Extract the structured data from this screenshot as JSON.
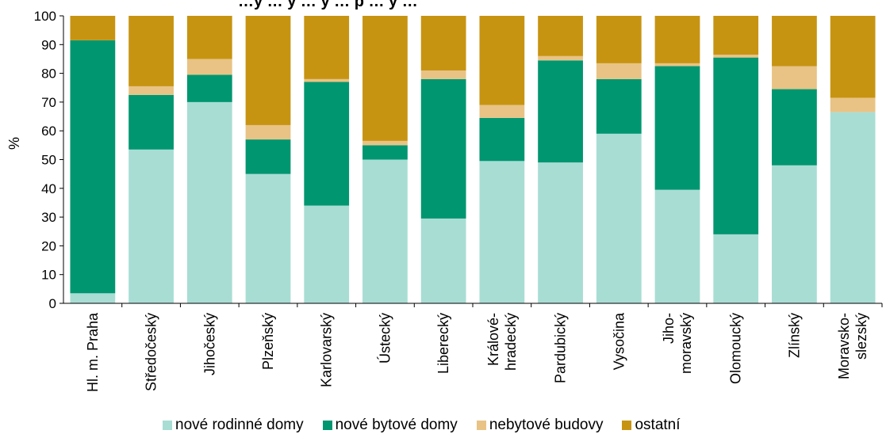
{
  "chart_data": {
    "type": "bar",
    "stacked": true,
    "title": "…y … y … y … p … y …",
    "ylabel": "%",
    "ylim": [
      0,
      100
    ],
    "yticks": [
      0,
      10,
      20,
      30,
      40,
      50,
      60,
      70,
      80,
      90,
      100
    ],
    "grid": false,
    "legend_position": "bottom",
    "categories": [
      [
        "Hl. m. Praha"
      ],
      [
        "Středočeský"
      ],
      [
        "Jihočeský"
      ],
      [
        "Plzeňský"
      ],
      [
        "Karlovarský"
      ],
      [
        "Ústecký"
      ],
      [
        "Liberecký"
      ],
      [
        "Králové-",
        "hradecký"
      ],
      [
        "Pardubický"
      ],
      [
        "Vysočina"
      ],
      [
        "Jiho-",
        "moravský"
      ],
      [
        "Olomoucký"
      ],
      [
        "Zlínský"
      ],
      [
        "Moravsko-",
        "slezský"
      ]
    ],
    "series": [
      {
        "name": "nové rodinné domy",
        "color": "#a8ddd4",
        "values": [
          3.5,
          53.5,
          70,
          45,
          34,
          50,
          29.5,
          49.5,
          49,
          59,
          39.5,
          24,
          48,
          66.5
        ]
      },
      {
        "name": "nové bytové domy",
        "color": "#009670",
        "values": [
          88,
          19,
          9.5,
          12,
          43,
          5,
          48.5,
          15,
          35.5,
          19,
          43,
          61.5,
          26.5,
          0
        ]
      },
      {
        "name": "nebytové budovy",
        "color": "#e8c385",
        "values": [
          0,
          3,
          5.5,
          5,
          1,
          1.5,
          3,
          4.5,
          1.5,
          5.5,
          1,
          1,
          8,
          5
        ]
      },
      {
        "name": "ostatní",
        "color": "#c79412",
        "values": [
          8.5,
          24.5,
          15,
          38,
          22,
          43.5,
          19,
          31,
          14,
          16.5,
          16.5,
          13.5,
          17.5,
          28.5
        ]
      }
    ]
  }
}
